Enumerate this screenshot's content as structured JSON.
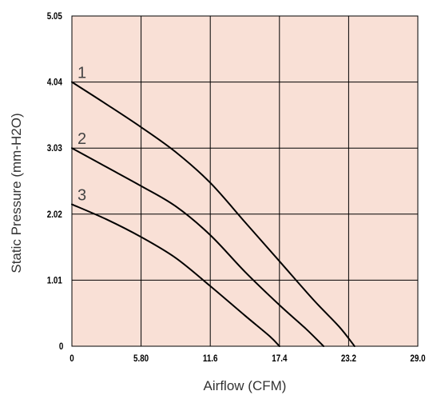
{
  "chart_data": {
    "type": "line",
    "title": "",
    "xlabel": "Airflow (CFM)",
    "ylabel": "Static Pressure (mm-H2O)",
    "xlim": [
      0,
      29.0
    ],
    "ylim": [
      0,
      5.05
    ],
    "x_ticks": [
      "0",
      "5.80",
      "11.6",
      "17.4",
      "23.2",
      "29.0"
    ],
    "x_tick_values": [
      0,
      5.8,
      11.6,
      17.4,
      23.2,
      29.0
    ],
    "y_ticks": [
      "0",
      "1.01",
      "2.02",
      "3.03",
      "4.04",
      "5.05"
    ],
    "y_tick_values": [
      0,
      1.01,
      2.02,
      3.03,
      4.04,
      5.05
    ],
    "grid": true,
    "plot_background": "#f9e0d6",
    "line_color": "#000000",
    "series": [
      {
        "name": "1",
        "points": [
          [
            0,
            4.04
          ],
          [
            2.9,
            3.7
          ],
          [
            5.8,
            3.35
          ],
          [
            8.7,
            2.97
          ],
          [
            11.6,
            2.5
          ],
          [
            14.5,
            1.9
          ],
          [
            17.4,
            1.3
          ],
          [
            20.3,
            0.7
          ],
          [
            22.4,
            0.3
          ],
          [
            23.7,
            0
          ]
        ]
      },
      {
        "name": "2",
        "points": [
          [
            0,
            3.03
          ],
          [
            2.9,
            2.74
          ],
          [
            5.8,
            2.45
          ],
          [
            8.7,
            2.14
          ],
          [
            11.6,
            1.7
          ],
          [
            14.5,
            1.14
          ],
          [
            17.4,
            0.63
          ],
          [
            19.6,
            0.27
          ],
          [
            21.1,
            0
          ]
        ]
      },
      {
        "name": "3",
        "points": [
          [
            0,
            2.17
          ],
          [
            2.9,
            1.94
          ],
          [
            5.8,
            1.67
          ],
          [
            8.7,
            1.35
          ],
          [
            11.6,
            0.92
          ],
          [
            14.5,
            0.47
          ],
          [
            16.6,
            0.15
          ],
          [
            17.4,
            0
          ]
        ]
      }
    ]
  }
}
